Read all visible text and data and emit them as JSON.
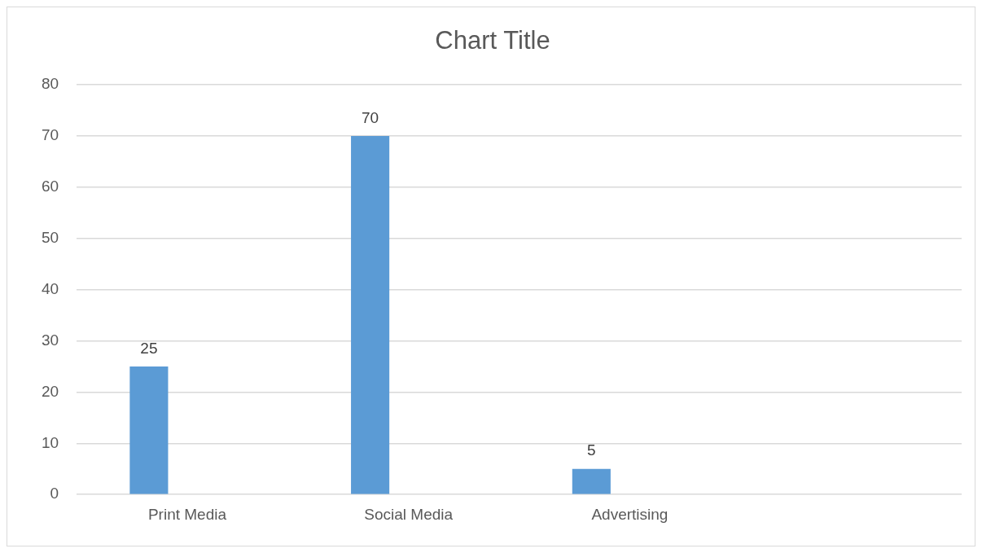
{
  "chart_data": {
    "type": "bar",
    "title": "Chart Title",
    "categories": [
      "Print Media",
      "Social Media",
      "Advertising",
      null
    ],
    "series": [
      {
        "color": "#5b9bd5",
        "values": [
          25,
          70,
          5,
          null
        ]
      },
      {
        "values": [
          null,
          null,
          null,
          null
        ]
      },
      {
        "values": [
          null,
          null,
          null,
          null
        ]
      }
    ],
    "ylim": [
      0,
      80
    ],
    "yticks": [
      0,
      10,
      20,
      30,
      40,
      50,
      60,
      70,
      80
    ],
    "grid": "y",
    "legend": false,
    "data_labels": true
  }
}
